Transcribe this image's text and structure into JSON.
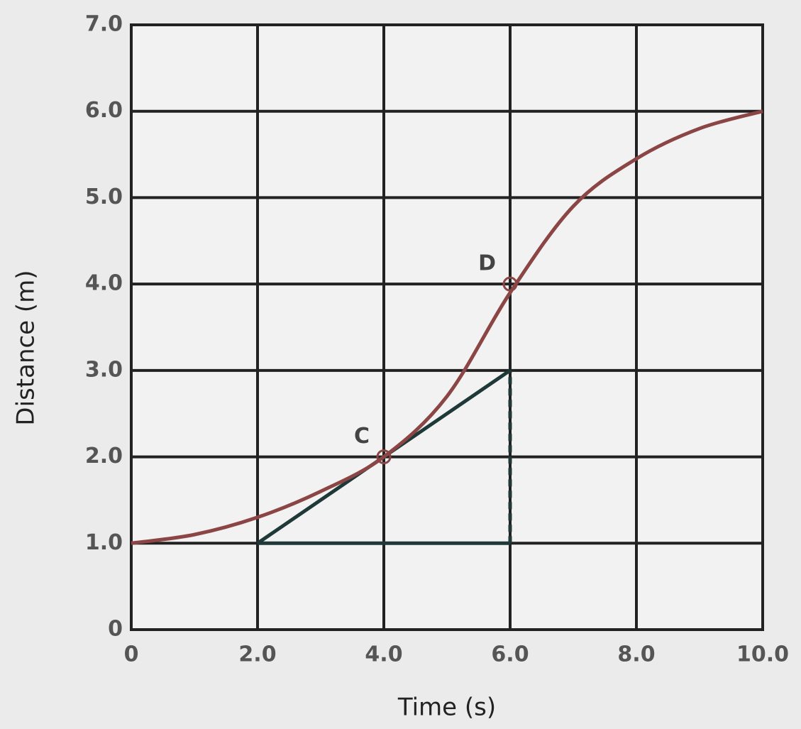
{
  "chart_data": {
    "type": "line",
    "xlabel": "Time (s)",
    "ylabel": "Distance (m)",
    "x": [
      0,
      1,
      2,
      3,
      4,
      5,
      6,
      7,
      8,
      9,
      10
    ],
    "values": [
      1.0,
      1.1,
      1.3,
      1.6,
      2.0,
      2.7,
      3.9,
      4.9,
      5.45,
      5.8,
      6.0
    ],
    "color": "#8b4545",
    "xlim": [
      0,
      10
    ],
    "ylim": [
      0,
      7
    ],
    "xticks": [
      0,
      {
        "value": 2,
        "label": "2.0"
      },
      {
        "value": 4,
        "label": "4.0"
      },
      {
        "value": 6,
        "label": "6.0"
      },
      {
        "value": 8,
        "label": "8.0"
      },
      {
        "value": 10,
        "label": "10.0"
      }
    ],
    "yticks": [
      0,
      {
        "value": 1,
        "label": "1.0"
      },
      {
        "value": 2,
        "label": "2.0"
      },
      {
        "value": 3,
        "label": "3.0"
      },
      {
        "value": 4,
        "label": "4.0"
      },
      {
        "value": 5,
        "label": "5.0"
      },
      {
        "value": 6,
        "label": "6.0"
      },
      {
        "value": 7,
        "label": "7.0"
      }
    ],
    "grid": true,
    "tangent": {
      "x": [
        2,
        6
      ],
      "y": [
        1,
        3
      ],
      "color": "#1f3838"
    },
    "rise": {
      "x": [
        6,
        6
      ],
      "y": [
        1,
        3
      ]
    },
    "run": {
      "x": [
        2,
        6
      ],
      "y": [
        1,
        1
      ]
    },
    "points": [
      {
        "label": "C",
        "x": 4,
        "y": 2
      },
      {
        "label": "D",
        "x": 6,
        "y": 4
      }
    ]
  }
}
